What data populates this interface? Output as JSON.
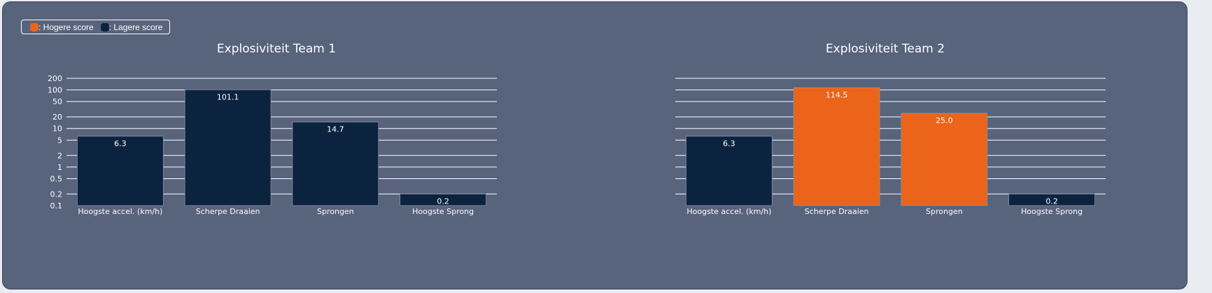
{
  "legend": {
    "higher": {
      "label": ": Hogere score",
      "color": "#ec6419"
    },
    "lower": {
      "label": ": Lagere score",
      "color": "#0c2340"
    }
  },
  "chart_data": [
    {
      "type": "bar",
      "title": "Explosiviteit Team 1",
      "yscale": "log",
      "ylim": [
        0.1,
        200
      ],
      "yticks": [
        "0.1",
        "0.2",
        "0.5",
        "1",
        "2",
        "5",
        "10",
        "20",
        "50",
        "100",
        "200"
      ],
      "categories": [
        "Hoogste accel. (km/h)",
        "Scherpe Draaien",
        "Sprongen",
        "Hoogste Sprong"
      ],
      "values": [
        6.3,
        101.1,
        14.7,
        0.2
      ],
      "value_labels": [
        "6.3",
        "101.1",
        "14.7",
        "0.2"
      ],
      "score": [
        "lower",
        "lower",
        "lower",
        "lower"
      ],
      "grid": true
    },
    {
      "type": "bar",
      "title": "Explosiviteit Team 2",
      "yscale": "log",
      "ylim": [
        0.1,
        200
      ],
      "yticks": [],
      "categories": [
        "Hoogste accel. (km/h)",
        "Scherpe Draaien",
        "Sprongen",
        "Hoogste Sprong"
      ],
      "values": [
        6.3,
        114.5,
        25.0,
        0.2
      ],
      "value_labels": [
        "6.3",
        "114.5",
        "25.0",
        "0.2"
      ],
      "score": [
        "lower",
        "higher",
        "higher",
        "lower"
      ],
      "grid": true
    }
  ]
}
